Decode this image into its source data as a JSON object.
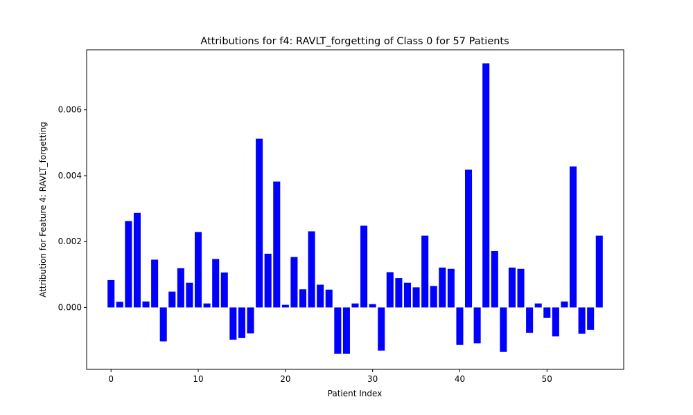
{
  "chart_data": {
    "type": "bar",
    "title": "Attributions for f4: RAVLT_forgetting of Class 0 for 57 Patients",
    "xlabel": "Patient Index",
    "ylabel": "Attribution for Feature 4: RAVLT_forgetting",
    "xlim": [
      -2.8,
      58.8
    ],
    "ylim": [
      -0.00188,
      0.00782
    ],
    "xticks": [
      0,
      10,
      20,
      30,
      40,
      50
    ],
    "yticks": [
      0.0,
      0.002,
      0.004,
      0.006
    ],
    "ytick_labels": [
      "0.000",
      "0.002",
      "0.004",
      "0.006"
    ],
    "bar_color": "#0000ff",
    "grid": false,
    "x": [
      0,
      1,
      2,
      3,
      4,
      5,
      6,
      7,
      8,
      9,
      10,
      11,
      12,
      13,
      14,
      15,
      16,
      17,
      18,
      19,
      20,
      21,
      22,
      23,
      24,
      25,
      26,
      27,
      28,
      29,
      30,
      31,
      32,
      33,
      34,
      35,
      36,
      37,
      38,
      39,
      40,
      41,
      42,
      43,
      44,
      45,
      46,
      47,
      48,
      49,
      50,
      51,
      52,
      53,
      54,
      55,
      56
    ],
    "values": [
      0.00083,
      0.00017,
      0.00262,
      0.00287,
      0.00018,
      0.00145,
      -0.00103,
      0.00048,
      0.00119,
      0.00075,
      0.00229,
      0.00012,
      0.00147,
      0.00106,
      -0.00098,
      -0.00093,
      -0.00079,
      0.00512,
      0.00163,
      0.00382,
      8e-05,
      0.00153,
      0.00055,
      0.00231,
      0.00069,
      0.00054,
      -0.00141,
      -0.00141,
      0.00012,
      0.00248,
      0.0001,
      -0.00131,
      0.00107,
      0.00089,
      0.00075,
      0.00061,
      0.00218,
      0.00065,
      0.00121,
      0.00117,
      -0.00114,
      0.00418,
      -0.00109,
      0.00741,
      0.00171,
      -0.00135,
      0.00121,
      0.00117,
      -0.00077,
      0.00012,
      -0.00032,
      -0.00088,
      0.00018,
      0.00428,
      -0.0008,
      -0.00068,
      0.00218
    ]
  }
}
